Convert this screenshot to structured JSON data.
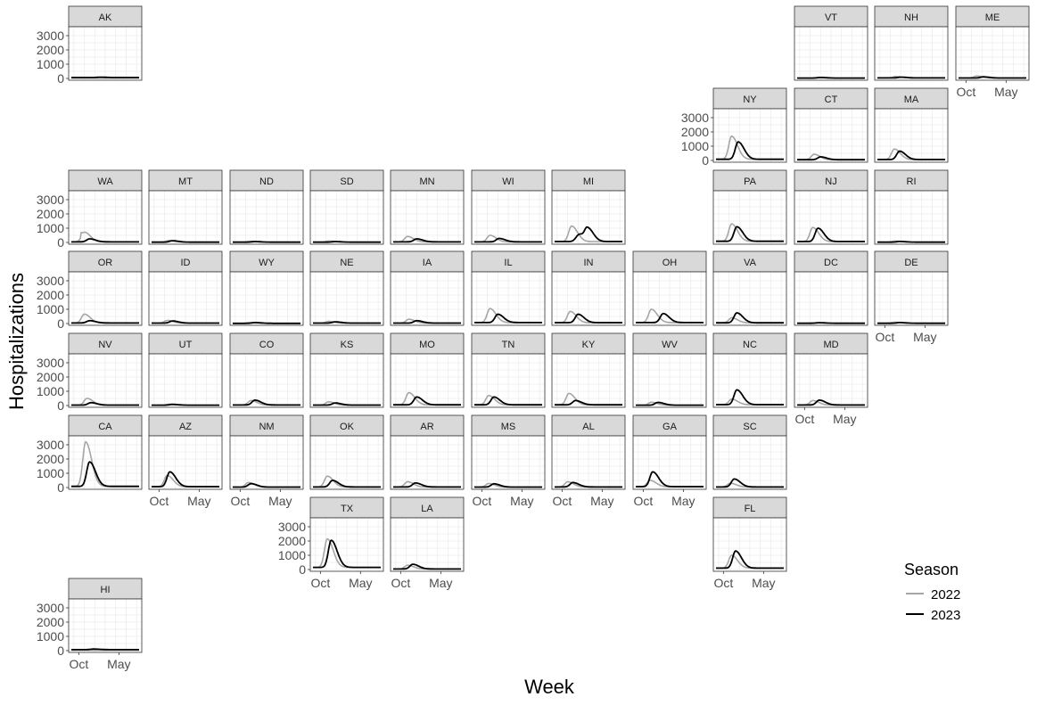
{
  "chart_data": {
    "type": "line",
    "layout": "small multiples arranged as a US state grid map",
    "xlabel": "Week",
    "ylabel": "Hospitalizations",
    "x_tick_labels": [
      "Oct",
      "May"
    ],
    "y_ticks": [
      0,
      1000,
      2000,
      3000
    ],
    "ylim": [
      0,
      3500
    ],
    "grid": true,
    "legend": {
      "title": "Season",
      "position": "right",
      "entries": [
        {
          "label": "2022",
          "color": "#a6a6a6"
        },
        {
          "label": "2023",
          "color": "#000000"
        }
      ]
    },
    "colors": {
      "s2022": "#a6a6a6",
      "s2023": "#000000",
      "strip": "#d9d9d9",
      "grid": "#ebebeb"
    },
    "x_domain_weeks": [
      0,
      52
    ],
    "panels": [
      {
        "state": "AK",
        "baseline": 60,
        "s2022": {
          "peak": 0,
          "week": 16
        },
        "s2023": {
          "peak": 90,
          "week": 22
        }
      },
      {
        "state": "VT",
        "baseline": 25,
        "s2022": {
          "peak": 50,
          "week": 14
        },
        "s2023": {
          "peak": 70,
          "week": 18
        }
      },
      {
        "state": "NH",
        "baseline": 35,
        "s2022": {
          "peak": 140,
          "week": 14
        },
        "s2023": {
          "peak": 90,
          "week": 18
        }
      },
      {
        "state": "ME",
        "baseline": 30,
        "s2022": {
          "peak": 170,
          "week": 14
        },
        "s2023": {
          "peak": 110,
          "week": 19
        }
      },
      {
        "state": "NY",
        "baseline": 80,
        "s2022": {
          "peak": 1700,
          "week": 12
        },
        "s2023": {
          "peak": 1300,
          "week": 17
        }
      },
      {
        "state": "CT",
        "baseline": 50,
        "s2022": {
          "peak": 430,
          "week": 13
        },
        "s2023": {
          "peak": 250,
          "week": 18
        }
      },
      {
        "state": "MA",
        "baseline": 60,
        "s2022": {
          "peak": 800,
          "week": 13
        },
        "s2023": {
          "peak": 650,
          "week": 17
        }
      },
      {
        "state": "WA",
        "baseline": 40,
        "s2022": {
          "peak": 720,
          "week": 10
        },
        "s2023": {
          "peak": 250,
          "week": 14
        }
      },
      {
        "state": "MT",
        "baseline": 20,
        "s2022": {
          "peak": 130,
          "week": 13
        },
        "s2023": {
          "peak": 120,
          "week": 16
        }
      },
      {
        "state": "ND",
        "baseline": 20,
        "s2022": {
          "peak": 80,
          "week": 13
        },
        "s2023": {
          "peak": 60,
          "week": 17
        }
      },
      {
        "state": "SD",
        "baseline": 20,
        "s2022": {
          "peak": 100,
          "week": 12
        },
        "s2023": {
          "peak": 60,
          "week": 17
        }
      },
      {
        "state": "MN",
        "baseline": 40,
        "s2022": {
          "peak": 420,
          "week": 11
        },
        "s2023": {
          "peak": 250,
          "week": 18
        }
      },
      {
        "state": "WI",
        "baseline": 40,
        "s2022": {
          "peak": 500,
          "week": 12
        },
        "s2023": {
          "peak": 280,
          "week": 19
        }
      },
      {
        "state": "MI",
        "baseline": 60,
        "s2022": {
          "peak": 1150,
          "week": 13
        },
        "s2023": {
          "peak": 1050,
          "week": 25
        }
      },
      {
        "state": "PA",
        "baseline": 80,
        "s2022": {
          "peak": 1300,
          "week": 12
        },
        "s2023": {
          "peak": 1100,
          "week": 16
        }
      },
      {
        "state": "NJ",
        "baseline": 60,
        "s2022": {
          "peak": 1050,
          "week": 12
        },
        "s2023": {
          "peak": 1000,
          "week": 16
        }
      },
      {
        "state": "RI",
        "baseline": 20,
        "s2022": {
          "peak": 90,
          "week": 13
        },
        "s2023": {
          "peak": 70,
          "week": 17
        }
      },
      {
        "state": "OR",
        "baseline": 40,
        "s2022": {
          "peak": 660,
          "week": 10
        },
        "s2023": {
          "peak": 200,
          "week": 14
        }
      },
      {
        "state": "ID",
        "baseline": 30,
        "s2022": {
          "peak": 220,
          "week": 12
        },
        "s2023": {
          "peak": 180,
          "week": 16
        }
      },
      {
        "state": "WY",
        "baseline": 15,
        "s2022": {
          "peak": 60,
          "week": 13
        },
        "s2023": {
          "peak": 70,
          "week": 17
        }
      },
      {
        "state": "NE",
        "baseline": 30,
        "s2022": {
          "peak": 150,
          "week": 12
        },
        "s2023": {
          "peak": 120,
          "week": 17
        }
      },
      {
        "state": "IA",
        "baseline": 30,
        "s2022": {
          "peak": 300,
          "week": 12
        },
        "s2023": {
          "peak": 200,
          "week": 18
        }
      },
      {
        "state": "IL",
        "baseline": 70,
        "s2022": {
          "peak": 1050,
          "week": 12
        },
        "s2023": {
          "peak": 650,
          "week": 18
        }
      },
      {
        "state": "IN",
        "baseline": 60,
        "s2022": {
          "peak": 850,
          "week": 12
        },
        "s2023": {
          "peak": 650,
          "week": 18
        }
      },
      {
        "state": "OH",
        "baseline": 70,
        "s2022": {
          "peak": 1000,
          "week": 12
        },
        "s2023": {
          "peak": 700,
          "week": 21
        }
      },
      {
        "state": "VA",
        "baseline": 50,
        "s2022": {
          "peak": 400,
          "week": 12
        },
        "s2023": {
          "peak": 750,
          "week": 16
        }
      },
      {
        "state": "DC",
        "baseline": 20,
        "s2022": {
          "peak": 50,
          "week": 13
        },
        "s2023": {
          "peak": 60,
          "week": 17
        }
      },
      {
        "state": "DE",
        "baseline": 20,
        "s2022": {
          "peak": 90,
          "week": 13
        },
        "s2023": {
          "peak": 70,
          "week": 17
        }
      },
      {
        "state": "NV",
        "baseline": 30,
        "s2022": {
          "peak": 500,
          "week": 12
        },
        "s2023": {
          "peak": 200,
          "week": 15
        }
      },
      {
        "state": "UT",
        "baseline": 25,
        "s2022": {
          "peak": 90,
          "week": 13
        },
        "s2023": {
          "peak": 80,
          "week": 16
        }
      },
      {
        "state": "CO",
        "baseline": 40,
        "s2022": {
          "peak": 350,
          "week": 14
        },
        "s2023": {
          "peak": 380,
          "week": 17
        }
      },
      {
        "state": "KS",
        "baseline": 30,
        "s2022": {
          "peak": 260,
          "week": 12
        },
        "s2023": {
          "peak": 180,
          "week": 17
        }
      },
      {
        "state": "MO",
        "baseline": 50,
        "s2022": {
          "peak": 900,
          "week": 12
        },
        "s2023": {
          "peak": 600,
          "week": 18
        }
      },
      {
        "state": "TN",
        "baseline": 50,
        "s2022": {
          "peak": 700,
          "week": 11
        },
        "s2023": {
          "peak": 600,
          "week": 15
        }
      },
      {
        "state": "KY",
        "baseline": 50,
        "s2022": {
          "peak": 850,
          "week": 11
        },
        "s2023": {
          "peak": 350,
          "week": 16
        }
      },
      {
        "state": "WV",
        "baseline": 25,
        "s2022": {
          "peak": 230,
          "week": 12
        },
        "s2023": {
          "peak": 220,
          "week": 17
        }
      },
      {
        "state": "NC",
        "baseline": 60,
        "s2022": {
          "peak": 450,
          "week": 12
        },
        "s2023": {
          "peak": 1100,
          "week": 16
        }
      },
      {
        "state": "MD",
        "baseline": 40,
        "s2022": {
          "peak": 350,
          "week": 12
        },
        "s2023": {
          "peak": 380,
          "week": 17
        }
      },
      {
        "state": "CA",
        "baseline": 80,
        "s2022": {
          "peak": 3200,
          "week": 11
        },
        "s2023": {
          "peak": 1800,
          "week": 14
        }
      },
      {
        "state": "AZ",
        "baseline": 60,
        "s2022": {
          "peak": 850,
          "week": 12
        },
        "s2023": {
          "peak": 1100,
          "week": 14
        }
      },
      {
        "state": "NM",
        "baseline": 30,
        "s2022": {
          "peak": 350,
          "week": 12
        },
        "s2023": {
          "peak": 270,
          "week": 14
        }
      },
      {
        "state": "OK",
        "baseline": 40,
        "s2022": {
          "peak": 800,
          "week": 11
        },
        "s2023": {
          "peak": 500,
          "week": 15
        }
      },
      {
        "state": "AR",
        "baseline": 40,
        "s2022": {
          "peak": 400,
          "week": 11
        },
        "s2023": {
          "peak": 320,
          "week": 17
        }
      },
      {
        "state": "MS",
        "baseline": 30,
        "s2022": {
          "peak": 280,
          "week": 11
        },
        "s2023": {
          "peak": 260,
          "week": 15
        }
      },
      {
        "state": "AL",
        "baseline": 40,
        "s2022": {
          "peak": 400,
          "week": 10
        },
        "s2023": {
          "peak": 350,
          "week": 14
        }
      },
      {
        "state": "GA",
        "baseline": 60,
        "s2022": {
          "peak": 500,
          "week": 11
        },
        "s2023": {
          "peak": 1100,
          "week": 13
        }
      },
      {
        "state": "SC",
        "baseline": 40,
        "s2022": {
          "peak": 300,
          "week": 11
        },
        "s2023": {
          "peak": 600,
          "week": 14
        }
      },
      {
        "state": "TX",
        "baseline": 150,
        "s2022": {
          "peak": 2150,
          "week": 11
        },
        "s2023": {
          "peak": 2050,
          "week": 14
        }
      },
      {
        "state": "LA",
        "baseline": 40,
        "s2022": {
          "peak": 300,
          "week": 11
        },
        "s2023": {
          "peak": 370,
          "week": 15
        }
      },
      {
        "state": "FL",
        "baseline": 100,
        "s2022": {
          "peak": 1000,
          "week": 12
        },
        "s2023": {
          "peak": 1300,
          "week": 15
        }
      },
      {
        "state": "HI",
        "baseline": 70,
        "s2022": {
          "peak": 0,
          "week": 16
        },
        "s2023": {
          "peak": 110,
          "week": 17
        }
      }
    ]
  }
}
